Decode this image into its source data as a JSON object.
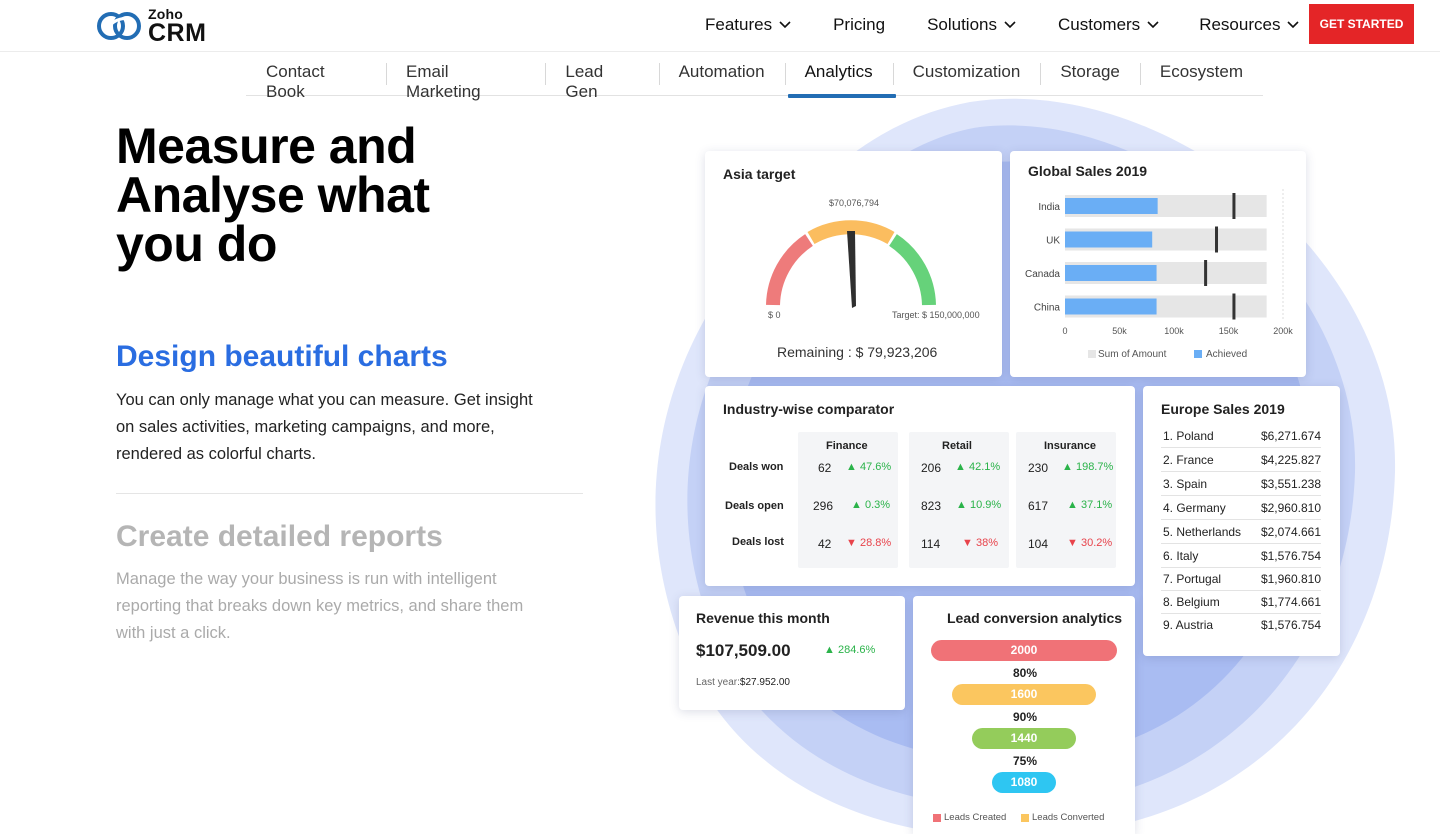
{
  "brand": {
    "top": "Zoho",
    "bottom": "CRM"
  },
  "nav": {
    "items": [
      {
        "label": "Features",
        "dropdown": true
      },
      {
        "label": "Pricing",
        "dropdown": false
      },
      {
        "label": "Solutions",
        "dropdown": true
      },
      {
        "label": "Customers",
        "dropdown": true
      },
      {
        "label": "Resources",
        "dropdown": true
      }
    ],
    "cta": "GET STARTED"
  },
  "subnav": {
    "tabs": [
      "Contact Book",
      "Email Marketing",
      "Lead Gen",
      "Automation",
      "Analytics",
      "Customization",
      "Storage",
      "Ecosystem"
    ],
    "active": "Analytics"
  },
  "hero": {
    "title": "Measure and Analyse what you do",
    "feature1_title": "Design beautiful charts",
    "feature1_desc": "You can only manage what you can measure. Get insight on sales activities, marketing campaigns, and more, rendered as colorful charts.",
    "feature2_title": "Create detailed reports",
    "feature2_desc": "Manage the way your business is run with intelligent reporting that breaks down key metrics, and share them with just a click."
  },
  "asia": {
    "title": "Asia target",
    "value_label": "$70,076,794",
    "min_label": "$ 0",
    "target_label": "Target: $ 150,000,000",
    "remaining": "Remaining : $ 79,923,206"
  },
  "global": {
    "title": "Global Sales 2019",
    "legend_sum": "Sum of Amount",
    "legend_achieved": "Achieved",
    "ticks": [
      "0",
      "50k",
      "100k",
      "150k",
      "200k"
    ]
  },
  "comparator": {
    "title": "Industry-wise comparator",
    "rows": [
      "Deals won",
      "Deals open",
      "Deals lost"
    ],
    "cols": [
      {
        "name": "Finance",
        "cells": [
          {
            "v": "62",
            "d": "47.6%",
            "dir": "up"
          },
          {
            "v": "296",
            "d": "0.3%",
            "dir": "up"
          },
          {
            "v": "42",
            "d": "28.8%",
            "dir": "down"
          }
        ]
      },
      {
        "name": "Retail",
        "cells": [
          {
            "v": "206",
            "d": "42.1%",
            "dir": "up"
          },
          {
            "v": "823",
            "d": "10.9%",
            "dir": "up"
          },
          {
            "v": "114",
            "d": "38%",
            "dir": "down"
          }
        ]
      },
      {
        "name": "Insurance",
        "cells": [
          {
            "v": "230",
            "d": "198.7%",
            "dir": "up"
          },
          {
            "v": "617",
            "d": "37.1%",
            "dir": "up"
          },
          {
            "v": "104",
            "d": "30.2%",
            "dir": "down"
          }
        ]
      }
    ]
  },
  "europe": {
    "title": "Europe Sales 2019",
    "rows": [
      {
        "c": "1. Poland",
        "v": "$6,271.674"
      },
      {
        "c": "2. France",
        "v": "$4,225.827"
      },
      {
        "c": "3. Spain",
        "v": "$3,551.238"
      },
      {
        "c": "4. Germany",
        "v": "$2,960.810"
      },
      {
        "c": "5. Netherlands",
        "v": "$2,074.661"
      },
      {
        "c": "6. Italy",
        "v": "$1,576.754"
      },
      {
        "c": "7. Portugal",
        "v": "$1,960.810"
      },
      {
        "c": "8. Belgium",
        "v": "$1,774.661"
      },
      {
        "c": "9. Austria",
        "v": "$1,576.754"
      }
    ]
  },
  "revenue": {
    "title": "Revenue this month",
    "value": "$107,509.00",
    "change": "284.6%",
    "last_year_label": "Last year:",
    "last_year_value": "$27.952.00"
  },
  "lead": {
    "title": "Lead conversion analytics",
    "bars": [
      "2000",
      "1600",
      "1440",
      "1080"
    ],
    "percents": [
      "80%",
      "90%",
      "75%"
    ],
    "legend_created": "Leads Created",
    "legend_converted": "Leads Converted"
  },
  "colors": {
    "accent": "#2a6de1",
    "cta": "#e42527",
    "tab_active": "#226db4",
    "bar_blue": "#6aaef5",
    "up": "#2bb34a",
    "down": "#e8434b"
  },
  "chart_data": [
    {
      "type": "gauge",
      "title": "Asia target",
      "value": 70076794,
      "min": 0,
      "max": 150000000,
      "remaining": 79923206
    },
    {
      "type": "bar",
      "title": "Global Sales 2019",
      "orientation": "horizontal",
      "categories": [
        "India",
        "UK",
        "Canada",
        "China"
      ],
      "series": [
        {
          "name": "Sum of Amount",
          "values": [
            185000,
            185000,
            185000,
            185000
          ]
        },
        {
          "name": "Achieved",
          "values": [
            85000,
            80000,
            84000,
            84000
          ]
        }
      ],
      "targets": [
        155000,
        139000,
        129000,
        155000
      ],
      "xlim": [
        0,
        200000
      ],
      "xticks": [
        "0",
        "50k",
        "100k",
        "150k",
        "200k"
      ]
    }
  ]
}
